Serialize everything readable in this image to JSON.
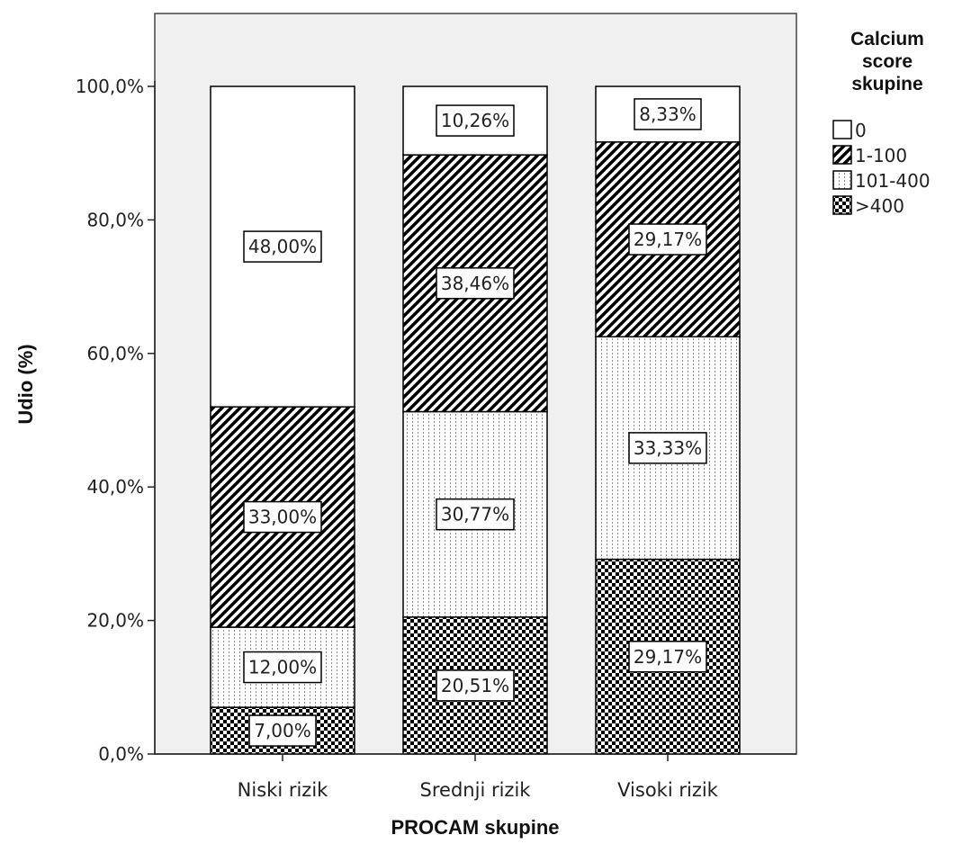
{
  "chart_data": {
    "type": "bar",
    "stacked": true,
    "categories": [
      "Niski rizik",
      "Srednji rizik",
      "Visoki rizik"
    ],
    "series": [
      {
        "name": ">400",
        "pattern": "checker",
        "values": [
          7.0,
          20.51,
          29.17
        ],
        "labels": [
          "7,00%",
          "20,51%",
          "29,17%"
        ]
      },
      {
        "name": "101-400",
        "pattern": "dots",
        "values": [
          12.0,
          30.77,
          33.33
        ],
        "labels": [
          "12,00%",
          "30,77%",
          "33,33%"
        ]
      },
      {
        "name": "1-100",
        "pattern": "diagonal",
        "values": [
          33.0,
          38.46,
          29.17
        ],
        "labels": [
          "33,00%",
          "38,46%",
          "29,17%"
        ]
      },
      {
        "name": "0",
        "pattern": "white",
        "values": [
          48.0,
          10.26,
          8.33
        ],
        "labels": [
          "48,00%",
          "10,26%",
          "8,33%"
        ]
      }
    ],
    "xlabel": "PROCAM skupine",
    "ylabel": "Udio (%)",
    "ylim": [
      0,
      100
    ],
    "yticks": [
      0,
      20,
      40,
      60,
      80,
      100
    ],
    "ytick_labels": [
      "0,0%",
      "20,0%",
      "40,0%",
      "60,0%",
      "80,0%",
      "100,0%"
    ],
    "legend_title": [
      "Calcium",
      "score",
      "skupine"
    ],
    "legend_order": [
      "0",
      "1-100",
      "101-400",
      ">400"
    ],
    "legend_position": "top-right",
    "plot_background": "#f0f0f0",
    "grid": false
  }
}
